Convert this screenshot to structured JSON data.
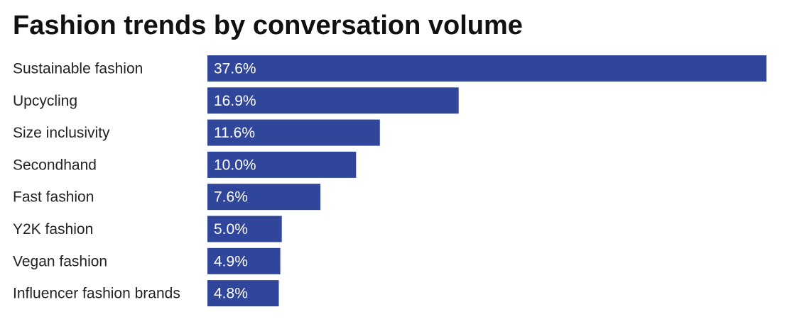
{
  "chart_data": {
    "type": "bar",
    "orientation": "horizontal",
    "title": "Fashion trends by conversation volume",
    "categories": [
      "Sustainable fashion",
      "Upcycling",
      "Size inclusivity",
      "Secondhand",
      "Fast fashion",
      "Y2K fashion",
      "Vegan fashion",
      "Influencer fashion brands"
    ],
    "values": [
      37.6,
      16.9,
      11.6,
      10.0,
      7.6,
      5.0,
      4.9,
      4.8
    ],
    "value_labels": [
      "37.6%",
      "16.9%",
      "11.6%",
      "10.0%",
      "7.6%",
      "5.0%",
      "4.9%",
      "4.8%"
    ],
    "unit": "%",
    "xlim": [
      0,
      37.6
    ],
    "grid": false,
    "legend": "none",
    "bar_color": "#30469b"
  }
}
